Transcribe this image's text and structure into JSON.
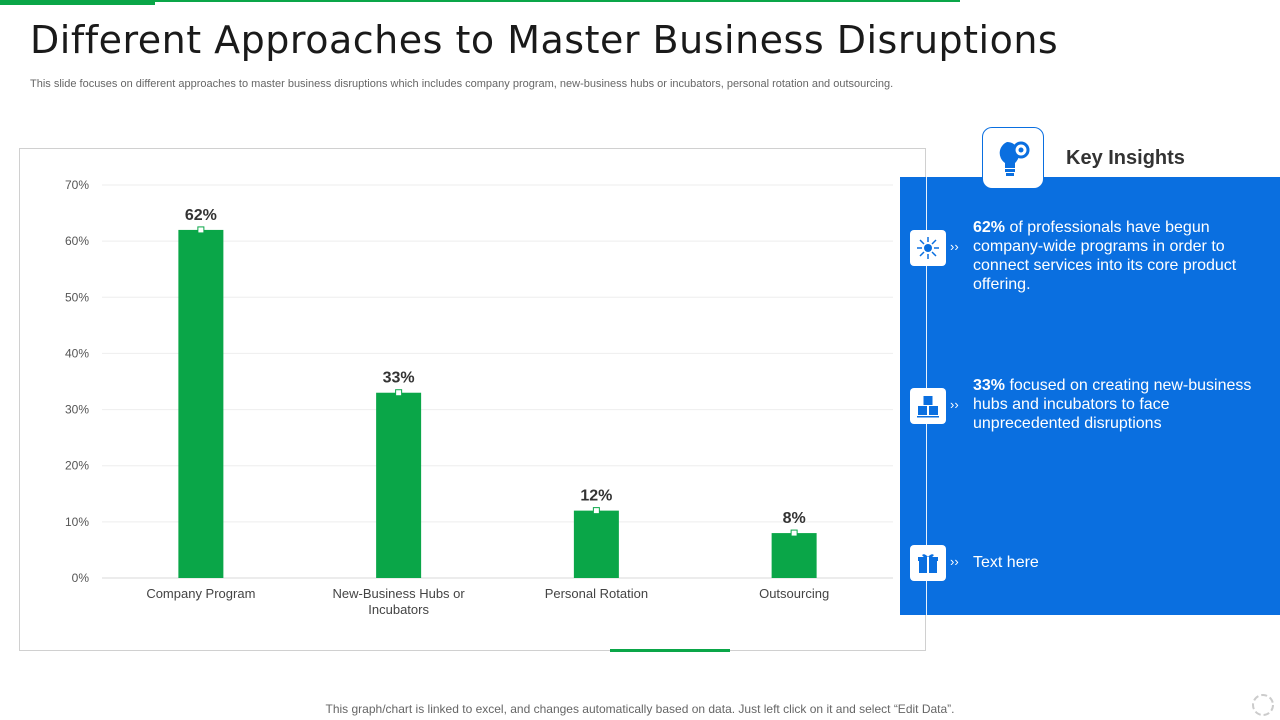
{
  "page": {
    "title": "Different Approaches to Master Business Disruptions",
    "subtitle": "This slide focuses on different approaches to master business disruptions which includes company program, new-business hubs or incubators, personal rotation and outsourcing.",
    "footnote": "This graph/chart is linked to excel,  and changes automatically based on data. Just left click on it and select “Edit Data”."
  },
  "colors": {
    "bar": "#0aa648",
    "panel": "#0a6fe0",
    "accent": "#0aa648"
  },
  "chart_data": {
    "type": "bar",
    "categories": [
      "Company Program",
      "New-Business Hubs or Incubators",
      "Personal Rotation",
      "Outsourcing"
    ],
    "values": [
      62,
      33,
      12,
      8
    ],
    "data_labels": [
      "62%",
      "33%",
      "12%",
      "8%"
    ],
    "yticks": [
      "0%",
      "10%",
      "20%",
      "30%",
      "40%",
      "50%",
      "60%",
      "70%"
    ],
    "ylim": [
      0,
      70
    ],
    "title": "",
    "xlabel": "",
    "ylabel": "",
    "grid": true
  },
  "insights": {
    "title": "Key Insights",
    "header_icon": "lightbulb-gear-icon",
    "items": [
      {
        "icon": "network-icon",
        "bold": "62%",
        "text": " of professionals have begun company-wide programs in order to connect services into its core product offering."
      },
      {
        "icon": "boxes-icon",
        "bold": "33%",
        "text": " focused on creating new-business hubs and incubators to face unprecedented disruptions"
      },
      {
        "icon": "gift-icon",
        "bold": "",
        "text": "Text here"
      }
    ]
  }
}
